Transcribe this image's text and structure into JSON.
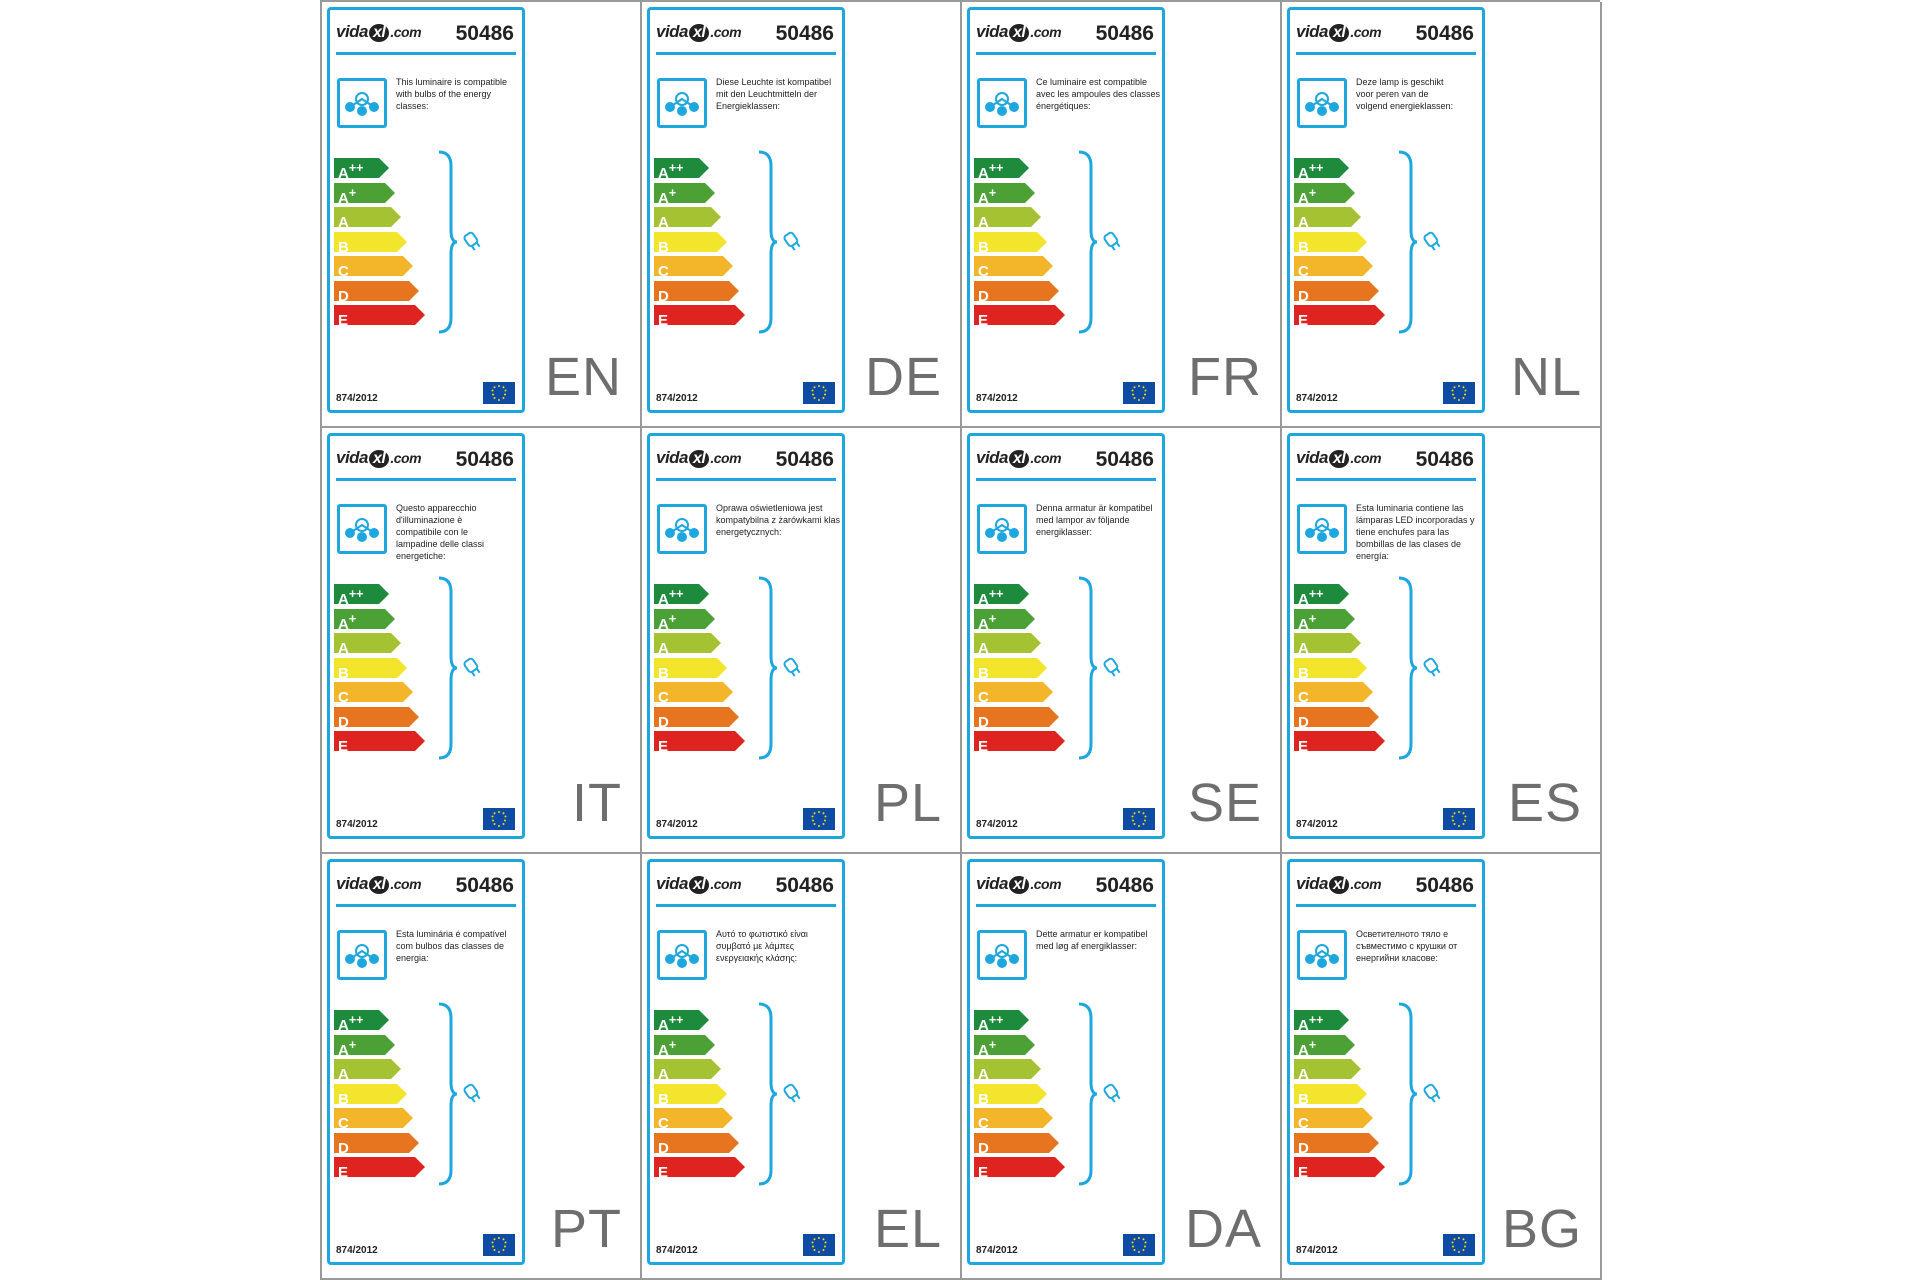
{
  "brand": {
    "vida": "vida",
    "xl": "xl",
    "com": ".com"
  },
  "product_code": "50486",
  "regulation": "874/2012",
  "energy_classes": [
    {
      "main": "A",
      "sup": "++",
      "color": "#1d8a3c",
      "fill": 0.3
    },
    {
      "main": "A",
      "sup": "+",
      "color": "#4ba136",
      "fill": 0.34
    },
    {
      "main": "A",
      "sup": "",
      "color": "#a5c233",
      "fill": 0.38
    },
    {
      "main": "B",
      "sup": "",
      "color": "#f2e52b",
      "fill": 0.42
    },
    {
      "main": "C",
      "sup": "",
      "color": "#f3b62b",
      "fill": 0.46
    },
    {
      "main": "D",
      "sup": "",
      "color": "#e7741f",
      "fill": 0.5
    },
    {
      "main": "E",
      "sup": "",
      "color": "#df2321",
      "fill": 0.54
    }
  ],
  "labels": [
    {
      "lang": "EN",
      "text": "This luminaire is compatible\nwith bulbs of the energy\nclasses:"
    },
    {
      "lang": "DE",
      "text": "Diese Leuchte ist kompatibel\nmit den Leuchtmitteln der\nEnergieklassen:"
    },
    {
      "lang": "FR",
      "text": "Ce luminaire est compatible\navec les ampoules des classes\nénergétiques:"
    },
    {
      "lang": "NL",
      "text": "Deze lamp is geschikt\nvoor peren van de\nvolgend energieklassen:"
    },
    {
      "lang": "IT",
      "text": "Questo apparecchio\nd'illuminazione è\ncompatibile con le\nlampadine delle classi\nenergetiche:"
    },
    {
      "lang": "PL",
      "text": "Oprawa oświetleniowa jest\nkompatybilna z żarówkami klas\nenergetycznych:"
    },
    {
      "lang": "SE",
      "text": "Denna armatur är kompatibel\nmed lampor av följande\nenergiklasser:"
    },
    {
      "lang": "ES",
      "text": "Esta luminaria contiene las\nlámparas LED incorporadas y\ntiene enchufes para las\nbombillas de las clases de\nenergía:"
    },
    {
      "lang": "PT",
      "text": "Esta luminária é compatível\ncom bulbos das classes de\nenergia:"
    },
    {
      "lang": "EL",
      "text": "Αυτό το φωτιστικό είναι\nσυμβατό με λάμπες\nενεργειακής κλάσης:"
    },
    {
      "lang": "DA",
      "text": "Dette armatur er kompatibel\nmed løg af energiklasser:"
    },
    {
      "lang": "BG",
      "text": "Осветителното тяло е\nсъвместимо с крушки от\nенергийни класове:"
    }
  ]
}
